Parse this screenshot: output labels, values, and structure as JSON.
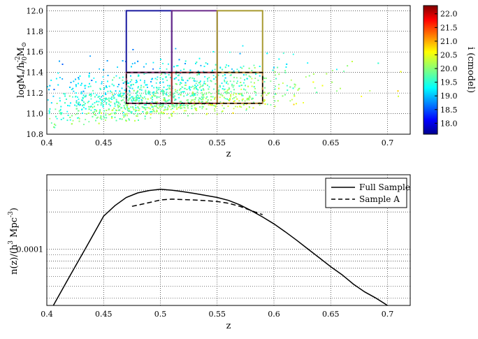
{
  "chart_data": [
    {
      "type": "scatter",
      "xlim": [
        0.4,
        0.72
      ],
      "ylim": [
        10.8,
        12.05
      ],
      "xticks": [
        "0.4",
        "0.45",
        "0.5",
        "0.55",
        "0.6",
        "0.65",
        "0.7"
      ],
      "yticks": [
        "10.8",
        "11.0",
        "11.2",
        "11.4",
        "11.6",
        "11.8",
        "12.0"
      ],
      "xlabel": "z",
      "ylabel": "logM*/h70^-2 M⊙",
      "ylabel_parts": {
        "a": "logM",
        "sub1": "*",
        "b": "/h",
        "sup": "-2",
        "sub2": "70",
        "c": "M",
        "sun": "⊙"
      },
      "grid": true,
      "colorbar": {
        "label": "i (cmodel)",
        "range": [
          17.6,
          22.3
        ],
        "ticks": [
          "18.0",
          "18.5",
          "19.0",
          "19.5",
          "20.0",
          "20.5",
          "21.0",
          "21.5",
          "22.0"
        ]
      },
      "points_note": "density cloud of galaxies; denser near 11.0–11.4, upper envelope rising with z",
      "boxes": [
        {
          "x": [
            0.47,
            0.51
          ],
          "y": [
            11.4,
            12.0
          ],
          "color": "#1a1aa0"
        },
        {
          "x": [
            0.51,
            0.55
          ],
          "y": [
            11.4,
            12.0
          ],
          "color": "#6a2a8a"
        },
        {
          "x": [
            0.55,
            0.59
          ],
          "y": [
            11.4,
            12.0
          ],
          "color": "#a89a30"
        },
        {
          "x": [
            0.47,
            0.51
          ],
          "y": [
            11.1,
            11.4
          ],
          "color": "#8a2a5a"
        },
        {
          "x": [
            0.51,
            0.55
          ],
          "y": [
            11.1,
            11.4
          ],
          "color": "#a03030"
        },
        {
          "x": [
            0.55,
            0.59
          ],
          "y": [
            11.1,
            11.4
          ],
          "color": "#b07a30"
        }
      ],
      "sample_a_box": {
        "x": [
          0.47,
          0.59
        ],
        "y": [
          11.1,
          11.4
        ]
      }
    },
    {
      "type": "line",
      "xlim": [
        0.4,
        0.72
      ],
      "ylim": [
        3.5e-05,
        0.0004
      ],
      "yscale": "log",
      "xticks": [
        "0.4",
        "0.45",
        "0.5",
        "0.55",
        "0.6",
        "0.65",
        "0.7"
      ],
      "ytick_label": "0.0001",
      "xlabel": "z",
      "ylabel": "n(z)/(h^3 Mpc^-3)",
      "ylabel_parts": {
        "a": "n(z)/(h",
        "sup1": "3",
        "b": " Mpc",
        "sup2": "-3",
        "c": ")"
      },
      "grid": true,
      "legend": {
        "placement": "top-right"
      },
      "series": [
        {
          "name": "Full Sample",
          "style": "solid",
          "x": [
            0.405,
            0.42,
            0.435,
            0.45,
            0.46,
            0.47,
            0.48,
            0.49,
            0.5,
            0.51,
            0.52,
            0.53,
            0.54,
            0.55,
            0.56,
            0.57,
            0.58,
            0.59,
            0.6,
            0.61,
            0.62,
            0.63,
            0.64,
            0.65,
            0.66,
            0.67,
            0.68,
            0.69,
            0.7
          ],
          "y": [
            3.4e-05,
            6e-05,
            0.000105,
            0.000185,
            0.000225,
            0.000262,
            0.000285,
            0.000298,
            0.000305,
            0.0003,
            0.000292,
            0.000282,
            0.000272,
            0.000262,
            0.000248,
            0.000228,
            0.000205,
            0.000182,
            0.00016,
            0.000138,
            0.000118,
            0.0001,
            8.5e-05,
            7.2e-05,
            6.2e-05,
            5.2e-05,
            4.5e-05,
            4e-05,
            3.5e-05
          ]
        },
        {
          "name": "Sample A",
          "style": "dashed",
          "x": [
            0.475,
            0.49,
            0.5,
            0.51,
            0.52,
            0.53,
            0.54,
            0.55,
            0.56,
            0.57,
            0.58,
            0.59
          ],
          "y": [
            0.000222,
            0.000238,
            0.00025,
            0.000254,
            0.000252,
            0.00025,
            0.000247,
            0.000243,
            0.000235,
            0.000222,
            0.000205,
            0.00019
          ]
        }
      ]
    }
  ]
}
